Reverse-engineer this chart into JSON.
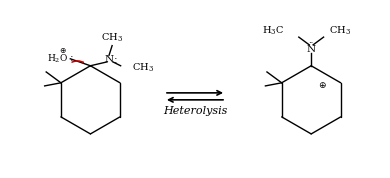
{
  "bg_color": "#ffffff",
  "line_color": "#000000",
  "red_arrow_color": "#cc0000",
  "title": "Heterolysis",
  "fs": 7.0,
  "fs_hetero": 8.0
}
